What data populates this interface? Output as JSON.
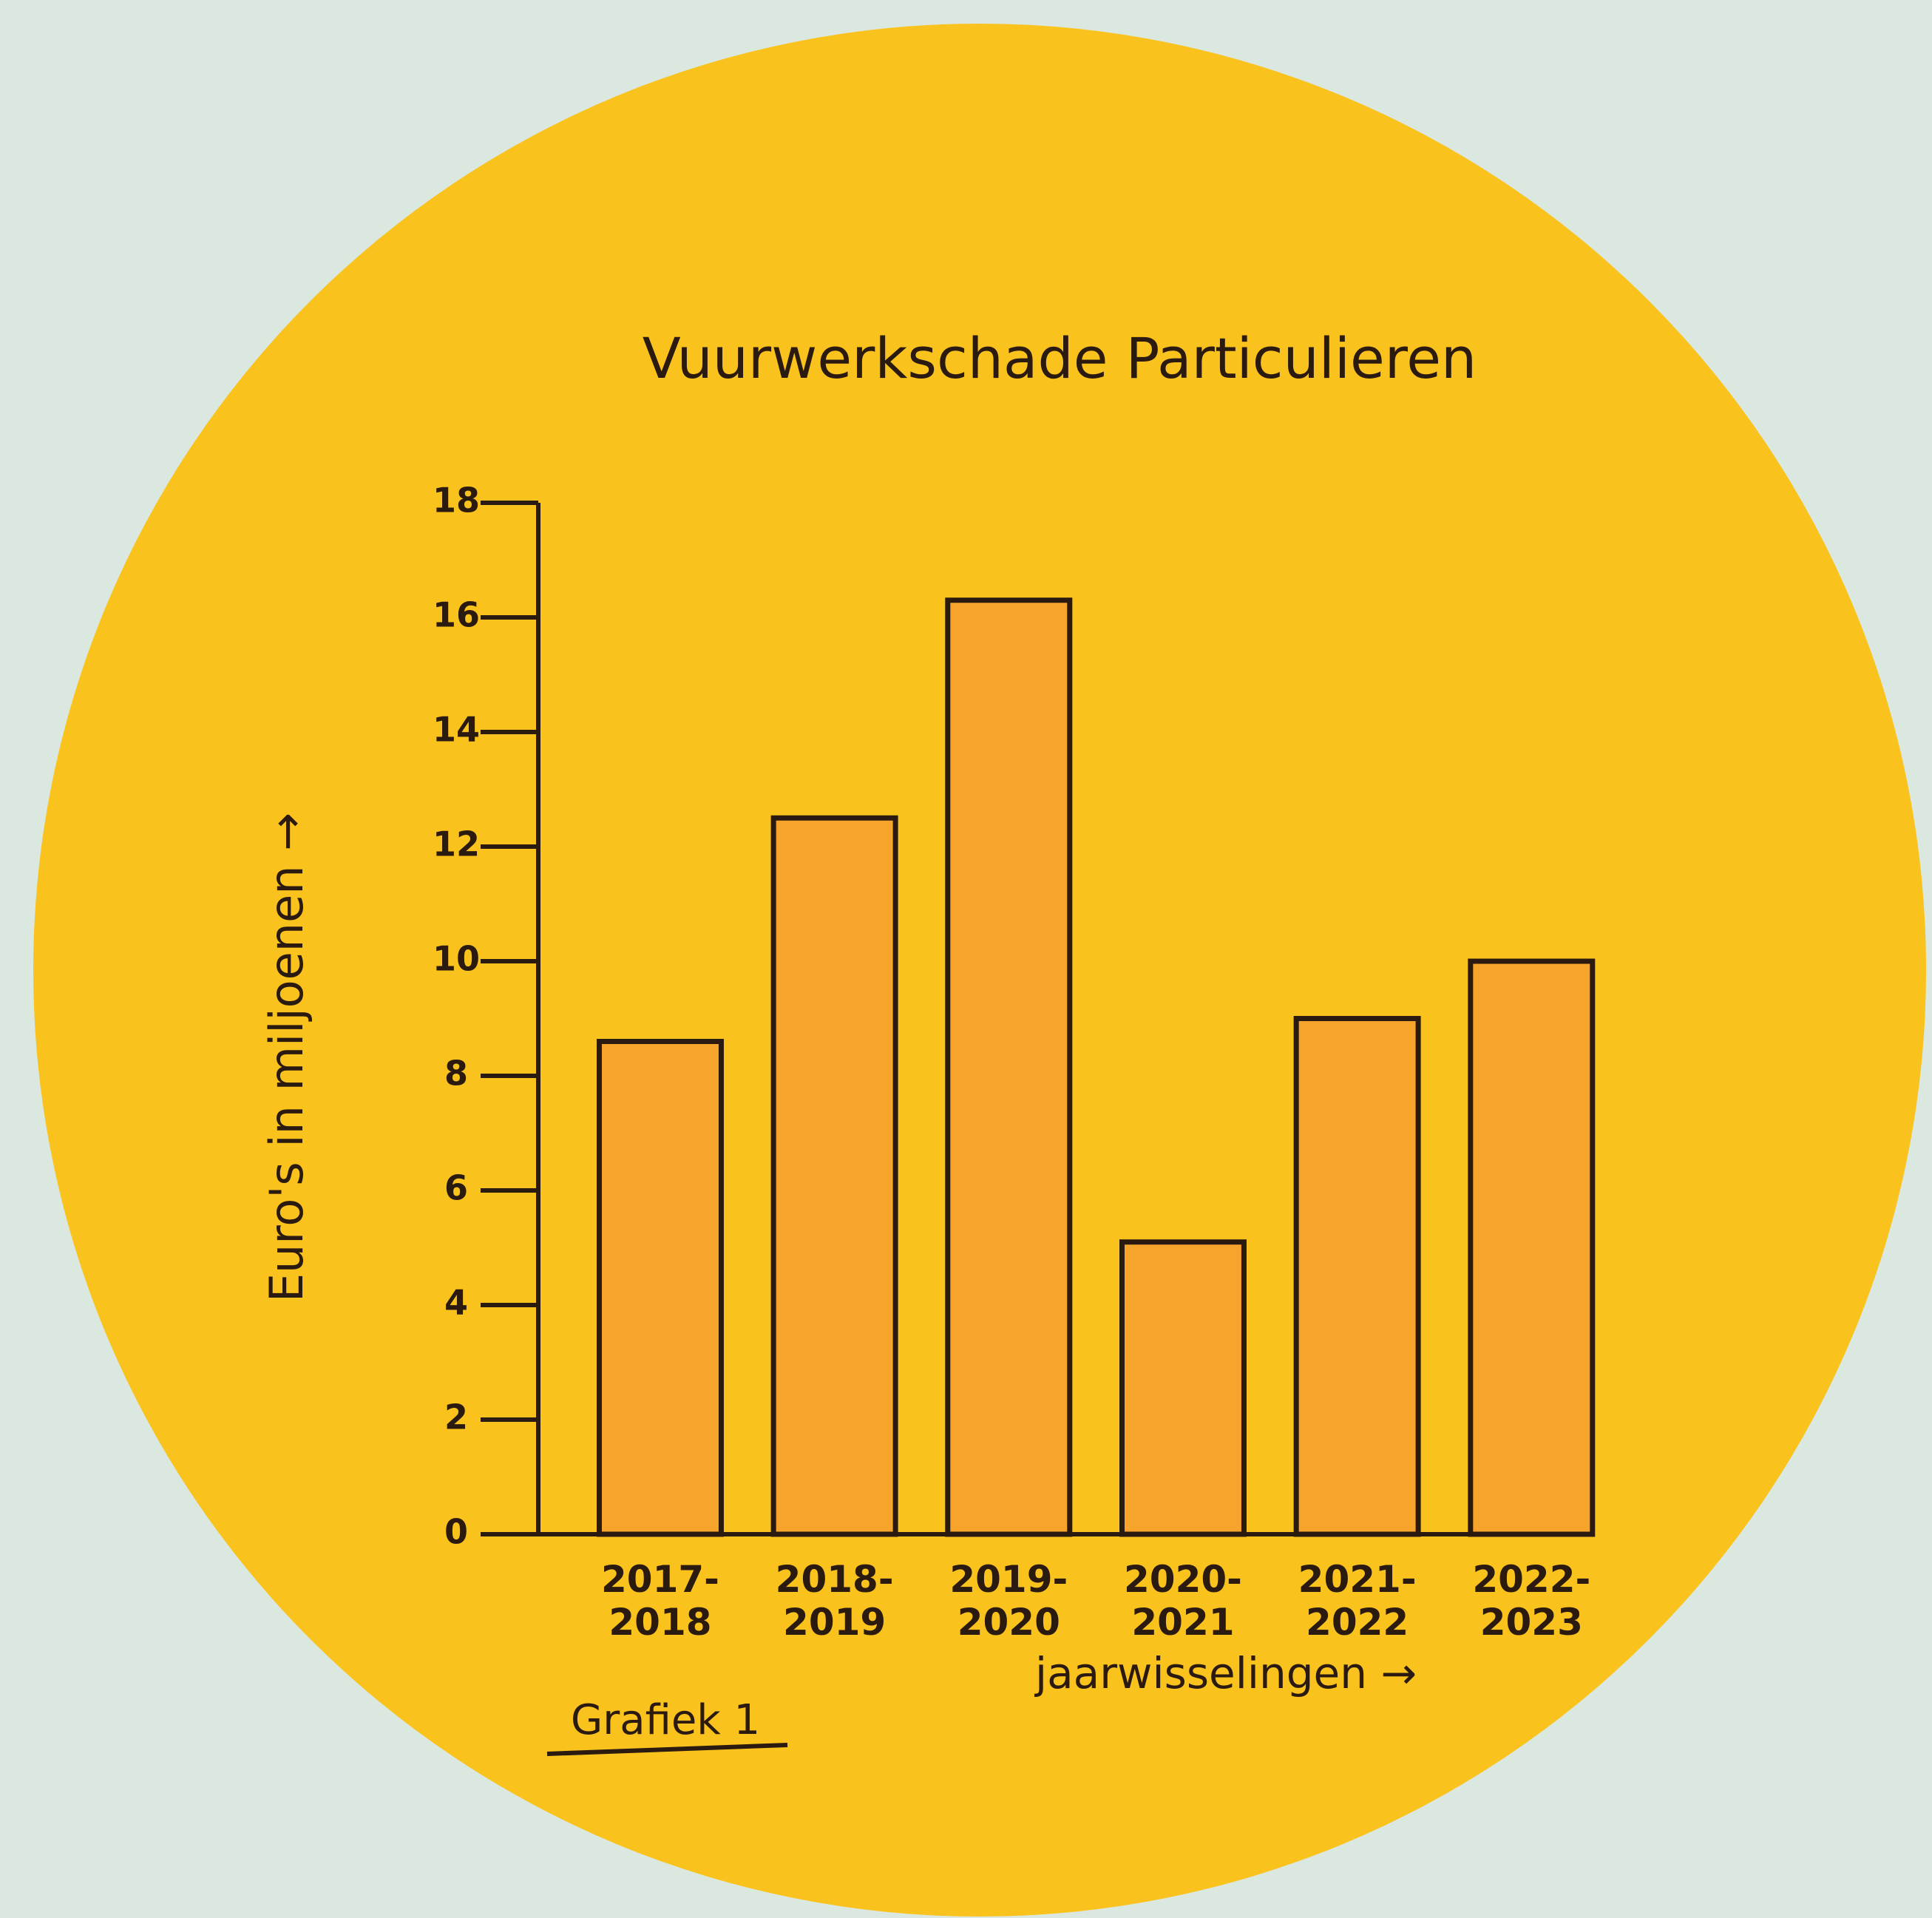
{
  "chart_data": {
    "type": "bar",
    "title": "Vuurwerkschade Particulieren",
    "y_label": "Euro's in miljoenen →",
    "x_label": "jaarwisselingen →",
    "caption": "Grafiek 1",
    "categories": [
      "2017-\n2018",
      "2018-\n2019",
      "2019-\n2020",
      "2020-\n2021",
      "2021-\n2022",
      "2022-\n2023"
    ],
    "values": [
      8.6,
      12.5,
      16.3,
      5.1,
      9.0,
      10.0
    ],
    "color": "#f6a42c",
    "ylim": [
      0,
      18
    ],
    "yticks": [
      0,
      2,
      4,
      6,
      8,
      10,
      12,
      14,
      16,
      18
    ],
    "grid": false
  }
}
